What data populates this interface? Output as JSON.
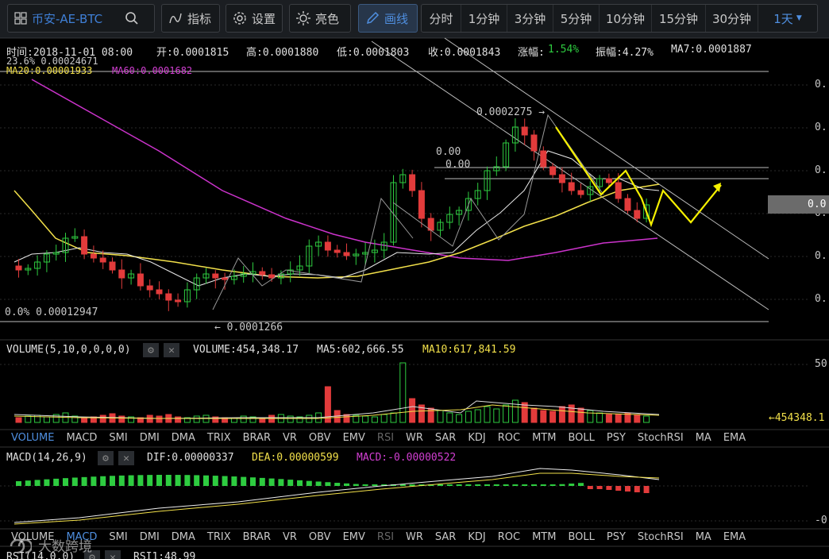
{
  "toolbar": {
    "symbol": "币安-AE-BTC",
    "indicators": "指标",
    "settings": "设置",
    "brightness": "亮色",
    "draw": "画线",
    "intervals": [
      "分时",
      "1分钟",
      "3分钟",
      "5分钟",
      "10分钟",
      "15分钟",
      "30分钟",
      "1天"
    ],
    "active_interval": "1天"
  },
  "info_bar": {
    "time": "时间:2018-11-01 08:00",
    "open": "开:0.0001815",
    "high": "高:0.0001880",
    "low": "低:0.0001803",
    "close": "收:0.0001843",
    "change_label": "涨幅:",
    "change_value": "1.54%",
    "amplitude": "振幅:4.27%",
    "ma7": "MA7:0.0001887"
  },
  "fib_top_label": "23.6% 0.00024671",
  "ma_line2": {
    "ma20": "MA20:0.00001933",
    "ma60": "MA60:0.0001682"
  },
  "annotations": {
    "fib_bottom": "0.0% 0.00012947",
    "low_marker": "← 0.0001266",
    "high_marker": "0.0002275 →",
    "label_a": "0.00",
    "label_b": "0.00"
  },
  "price_axis": [
    "0.",
    "0.",
    "0.",
    "0.",
    "0.",
    "0.",
    "0."
  ],
  "current_price_badge": "0.0",
  "volume_panel": {
    "title": "VOLUME(5,10,0,0,0,0)",
    "volume": "VOLUME:454,348.17",
    "ma5": "MA5:602,666.55",
    "ma10": "MA10:617,841.59",
    "axis_top": "50",
    "current": "←454348.1"
  },
  "indicator_tabs": [
    "VOLUME",
    "MACD",
    "SMI",
    "DMI",
    "DMA",
    "TRIX",
    "BRAR",
    "VR",
    "OBV",
    "EMV",
    "RSI",
    "WR",
    "SAR",
    "KDJ",
    "ROC",
    "MTM",
    "BOLL",
    "PSY",
    "StochRSI",
    "MA",
    "EMA"
  ],
  "active_tab_1": "VOLUME",
  "active_tab_2": "MACD",
  "macd_panel": {
    "title": "MACD(14,26,9)",
    "dif": "DIF:0.00000337",
    "dea": "DEA:0.00000599",
    "macd": "MACD:-0.00000522",
    "axis_bottom": "-0."
  },
  "rsi_panel": {
    "title": "RSI(14,0,0)",
    "rsi1": "RSI1:48.99"
  },
  "watermark": "大数跨境",
  "colors": {
    "up": "#2ecc40",
    "down": "#e23b3b",
    "ma_yellow": "#f2e04a",
    "ma_magenta": "#cc33cc",
    "accent": "#4f8fe0"
  }
}
